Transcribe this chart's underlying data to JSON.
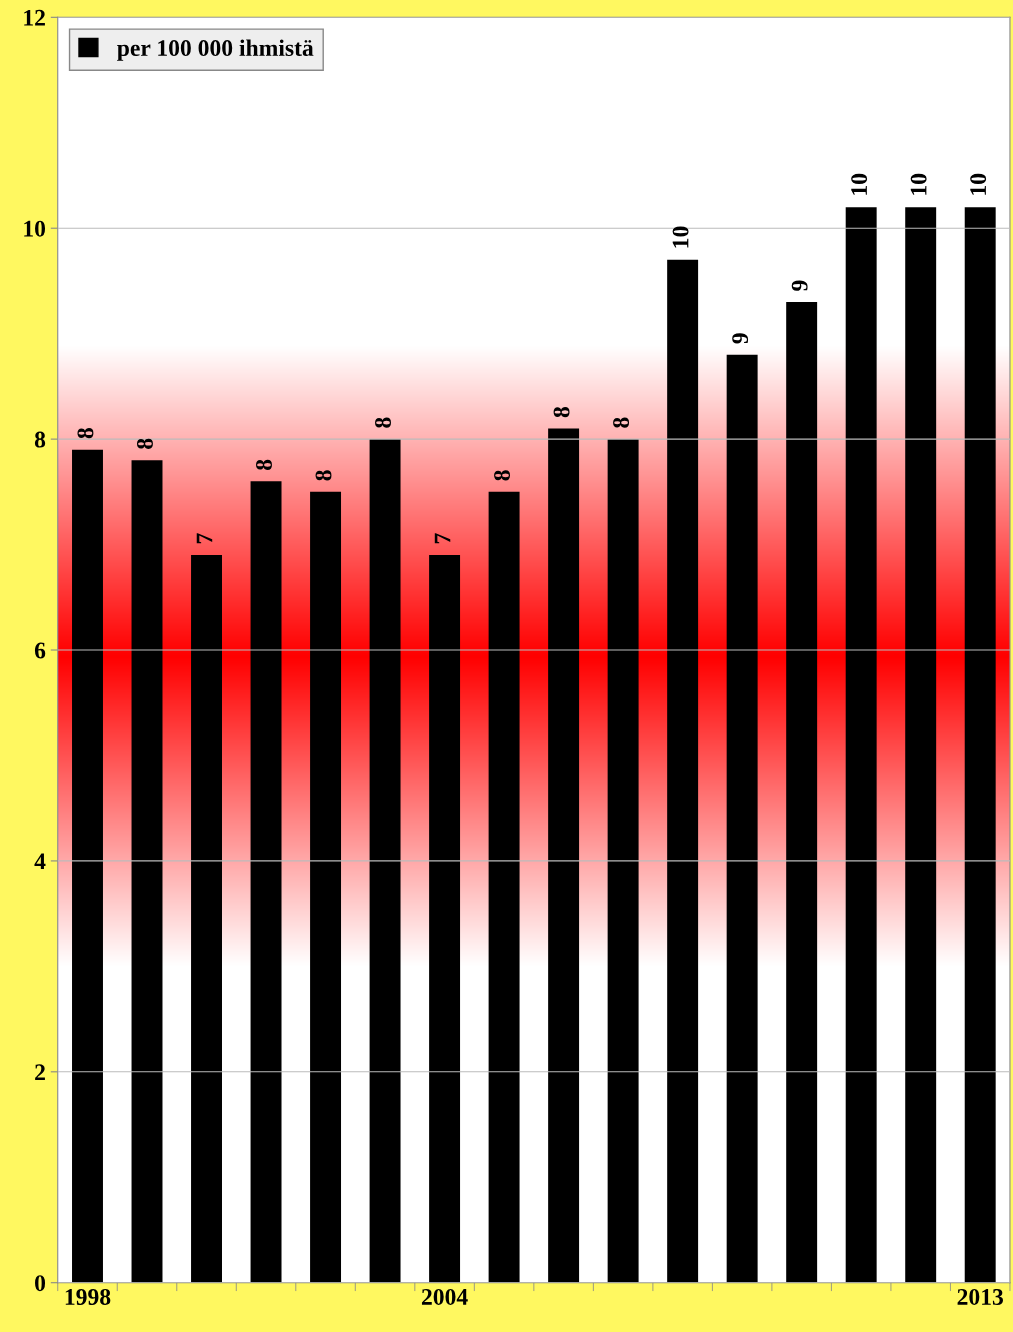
{
  "chart_data": {
    "type": "bar",
    "categories": [
      "1998",
      null,
      null,
      null,
      null,
      null,
      "2004",
      null,
      null,
      null,
      null,
      null,
      null,
      null,
      null,
      "2013"
    ],
    "series": [
      {
        "name": "per 100 000 ihmistä",
        "color": "#000000",
        "values": [
          7.9,
          7.8,
          6.9,
          7.6,
          7.5,
          8.0,
          6.9,
          7.5,
          8.1,
          8.0,
          9.7,
          8.8,
          9.3,
          10.2,
          10.2,
          10.2
        ],
        "value_labels": [
          "8",
          "8",
          "7",
          "8",
          "8",
          "8",
          "7",
          "8",
          "8",
          "8",
          "10",
          "9",
          "9",
          "10",
          "10",
          "10"
        ]
      }
    ],
    "ylim": [
      0,
      12
    ],
    "yticks": [
      0,
      2,
      4,
      6,
      8,
      10,
      12
    ],
    "grid": "y",
    "legend": "top left"
  }
}
